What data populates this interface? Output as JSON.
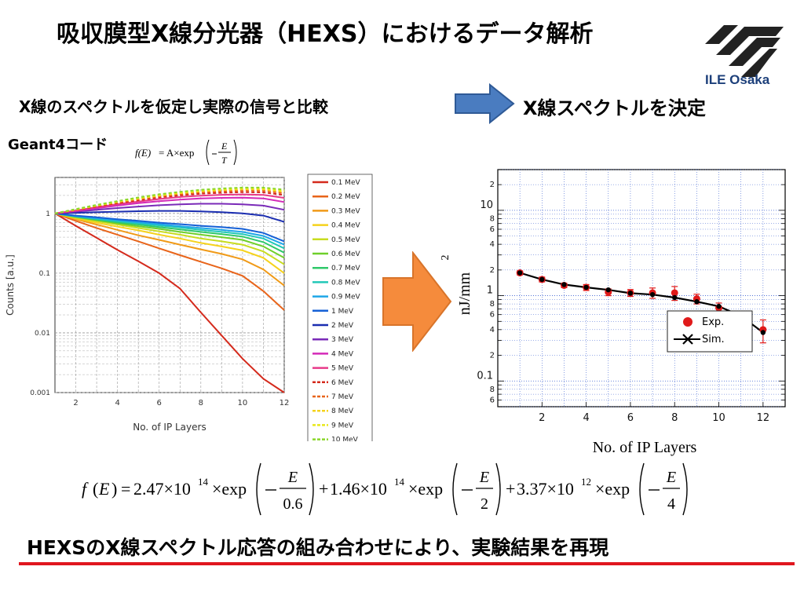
{
  "title": "吸収膜型X線分光器（HEXS）におけるデータ解析",
  "logo": {
    "text": "ILE Osaka",
    "icon": "ile-osaka-logo-icon",
    "color": "#1c3f7a"
  },
  "subtitle_left": "X線のスペクトルを仮定し実際の信号と比較",
  "subtitle_right": "X線スペクトルを決定",
  "geant_label": "Geant4コード",
  "model_formula": {
    "lhs": "f(E)",
    "rhs_prefix": "= A×exp",
    "num": "E",
    "den": "T"
  },
  "bottom_formula": {
    "terms": [
      {
        "coef": "2.47",
        "exp": "14",
        "den": "0.6"
      },
      {
        "coef": "1.46",
        "exp": "14",
        "den": "2"
      },
      {
        "coef": "3.37",
        "exp": "12",
        "den": "4"
      }
    ]
  },
  "conclusion": "HEXSのX線スペクトル応答の組み合わせにより、実験結果を再現",
  "colors": {
    "accent_red": "#e0161e",
    "arrow_blue": "#4a7cc0",
    "arrow_orange": "#f58b3c"
  },
  "chart_data": [
    {
      "type": "line",
      "xlabel": "No. of IP Layers",
      "ylabel": "Counts [a.u.]",
      "yscale": "log",
      "xlim": [
        1,
        12
      ],
      "ylim": [
        0.001,
        4
      ],
      "xticks": [
        "2",
        "4",
        "6",
        "8",
        "10",
        "12"
      ],
      "yticks": [
        "0.001",
        "0.01",
        "0.1",
        "1"
      ],
      "grid": true,
      "legend": "right",
      "x": [
        1,
        2,
        3,
        4,
        5,
        6,
        7,
        8,
        9,
        10,
        11,
        12
      ],
      "series": [
        {
          "name": "0.1 MeV",
          "color": "#d42a1c",
          "dash": false,
          "values": [
            1,
            0.62,
            0.39,
            0.245,
            0.158,
            0.1,
            0.055,
            0.022,
            0.009,
            0.0037,
            0.0017,
            0.001
          ]
        },
        {
          "name": "0.2 MeV",
          "color": "#e8641a",
          "dash": false,
          "values": [
            1,
            0.75,
            0.57,
            0.44,
            0.34,
            0.26,
            0.2,
            0.155,
            0.12,
            0.09,
            0.05,
            0.024
          ]
        },
        {
          "name": "0.3 MeV",
          "color": "#f09a18",
          "dash": false,
          "values": [
            1,
            0.8,
            0.65,
            0.53,
            0.43,
            0.36,
            0.3,
            0.25,
            0.21,
            0.17,
            0.115,
            0.062
          ]
        },
        {
          "name": "0.4 MeV",
          "color": "#f5d21c",
          "dash": false,
          "values": [
            1,
            0.83,
            0.7,
            0.6,
            0.52,
            0.44,
            0.38,
            0.32,
            0.28,
            0.24,
            0.18,
            0.1
          ]
        },
        {
          "name": "0.5 MeV",
          "color": "#c8dc20",
          "dash": false,
          "values": [
            1,
            0.85,
            0.74,
            0.65,
            0.57,
            0.5,
            0.44,
            0.38,
            0.34,
            0.3,
            0.23,
            0.14
          ]
        },
        {
          "name": "0.6 MeV",
          "color": "#6fcf2a",
          "dash": false,
          "values": [
            1,
            0.87,
            0.77,
            0.68,
            0.61,
            0.55,
            0.49,
            0.44,
            0.4,
            0.36,
            0.28,
            0.18
          ]
        },
        {
          "name": "0.7 MeV",
          "color": "#2fc86a",
          "dash": false,
          "values": [
            1,
            0.88,
            0.79,
            0.71,
            0.65,
            0.59,
            0.54,
            0.49,
            0.45,
            0.41,
            0.33,
            0.22
          ]
        },
        {
          "name": "0.8 MeV",
          "color": "#22c8b8",
          "dash": false,
          "values": [
            1,
            0.89,
            0.81,
            0.74,
            0.68,
            0.63,
            0.58,
            0.53,
            0.49,
            0.45,
            0.38,
            0.26
          ]
        },
        {
          "name": "0.9 MeV",
          "color": "#1ea6e8",
          "dash": false,
          "values": [
            1,
            0.9,
            0.83,
            0.77,
            0.71,
            0.66,
            0.61,
            0.57,
            0.53,
            0.49,
            0.42,
            0.3
          ]
        },
        {
          "name": "1 MeV",
          "color": "#1560d6",
          "dash": false,
          "values": [
            1,
            0.92,
            0.86,
            0.8,
            0.75,
            0.7,
            0.66,
            0.62,
            0.59,
            0.55,
            0.47,
            0.34
          ]
        },
        {
          "name": "2 MeV",
          "color": "#1a2db0",
          "dash": false,
          "values": [
            1,
            1.02,
            1.05,
            1.07,
            1.09,
            1.1,
            1.1,
            1.08,
            1.05,
            1.0,
            0.92,
            0.72
          ]
        },
        {
          "name": "3 MeV",
          "color": "#7a2ab8",
          "dash": false,
          "values": [
            1,
            1.07,
            1.15,
            1.23,
            1.3,
            1.37,
            1.42,
            1.45,
            1.45,
            1.42,
            1.35,
            1.15
          ]
        },
        {
          "name": "4 MeV",
          "color": "#d42ab8",
          "dash": false,
          "values": [
            1,
            1.1,
            1.22,
            1.35,
            1.48,
            1.6,
            1.7,
            1.78,
            1.82,
            1.83,
            1.78,
            1.55
          ]
        },
        {
          "name": "5 MeV",
          "color": "#e83a8a",
          "dash": false,
          "values": [
            1,
            1.12,
            1.27,
            1.43,
            1.58,
            1.74,
            1.88,
            1.98,
            2.05,
            2.08,
            2.04,
            1.82
          ]
        },
        {
          "name": "6 MeV",
          "color": "#d42a1c",
          "dash": true,
          "values": [
            1,
            1.14,
            1.3,
            1.48,
            1.66,
            1.85,
            2.0,
            2.14,
            2.22,
            2.27,
            2.25,
            2.03
          ]
        },
        {
          "name": "7 MeV",
          "color": "#e8641a",
          "dash": true,
          "values": [
            1,
            1.15,
            1.33,
            1.52,
            1.72,
            1.93,
            2.1,
            2.25,
            2.35,
            2.42,
            2.4,
            2.18
          ]
        },
        {
          "name": "8 MeV",
          "color": "#f5d21c",
          "dash": true,
          "values": [
            1,
            1.16,
            1.35,
            1.56,
            1.77,
            1.99,
            2.18,
            2.34,
            2.45,
            2.53,
            2.52,
            2.3
          ]
        },
        {
          "name": "9 MeV",
          "color": "#e8e81a",
          "dash": true,
          "values": [
            1,
            1.17,
            1.37,
            1.58,
            1.81,
            2.04,
            2.24,
            2.42,
            2.54,
            2.62,
            2.62,
            2.4
          ]
        },
        {
          "name": "10 MeV",
          "color": "#8ad62a",
          "dash": true,
          "values": [
            1,
            1.18,
            1.39,
            1.61,
            1.85,
            2.09,
            2.3,
            2.49,
            2.62,
            2.71,
            2.71,
            2.5
          ]
        }
      ]
    },
    {
      "type": "scatter",
      "xlabel": "No. of IP Layers",
      "ylabel": "nJ/mm",
      "ylabel_sup": "2",
      "yscale": "log",
      "xlim": [
        0,
        13
      ],
      "ylim": [
        0.05,
        30
      ],
      "xticks": [
        "2",
        "4",
        "6",
        "8",
        "10",
        "12"
      ],
      "yticks": [
        "0.1",
        "1",
        "10"
      ],
      "yminor_labels": [
        "6",
        "8",
        "2",
        "4",
        "6",
        "8",
        "2",
        "4",
        "6",
        "8",
        "2"
      ],
      "grid": true,
      "legend": "lower-right",
      "x": [
        1,
        2,
        3,
        4,
        5,
        6,
        7,
        8,
        9,
        10,
        11,
        12
      ],
      "series": [
        {
          "name": "Exp.",
          "color": "#e01a1a",
          "marker": "circle",
          "values": [
            1.85,
            1.55,
            1.32,
            1.25,
            1.1,
            1.08,
            1.08,
            1.08,
            0.92,
            0.72,
            0.56,
            0.4
          ],
          "err": [
            0.1,
            0.1,
            0.08,
            0.1,
            0.1,
            0.1,
            0.15,
            0.2,
            0.12,
            0.1,
            0.1,
            0.12
          ]
        },
        {
          "name": "Sim.",
          "color": "#000000",
          "marker": "x-line",
          "values": [
            1.85,
            1.55,
            1.35,
            1.25,
            1.17,
            1.07,
            1.03,
            0.95,
            0.85,
            0.75,
            0.58,
            0.37
          ]
        }
      ]
    }
  ]
}
